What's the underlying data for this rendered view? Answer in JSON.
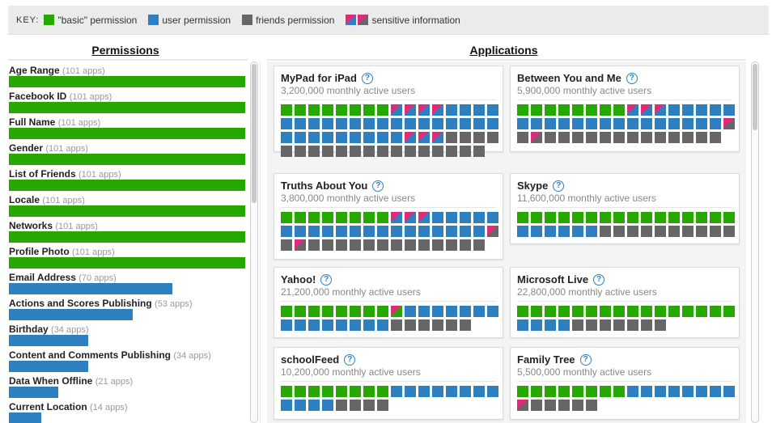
{
  "colors": {
    "basic": "#27a800",
    "user": "#2e7fc0",
    "friends": "#666666",
    "sensitive": "#e02b7a"
  },
  "key": {
    "label": "KEY:",
    "items": [
      {
        "label": "\"basic\" permission"
      },
      {
        "label": "user permission"
      },
      {
        "label": "friends permission"
      },
      {
        "label": "sensitive information"
      }
    ]
  },
  "headings": {
    "permissions": "Permissions",
    "applications": "Applications"
  },
  "permissions": [
    {
      "name": "Age Range",
      "count": "(101 apps)",
      "apps": 101,
      "type": "basic"
    },
    {
      "name": "Facebook ID",
      "count": "(101 apps)",
      "apps": 101,
      "type": "basic"
    },
    {
      "name": "Full Name",
      "count": "(101 apps)",
      "apps": 101,
      "type": "basic"
    },
    {
      "name": "Gender",
      "count": "(101 apps)",
      "apps": 101,
      "type": "basic"
    },
    {
      "name": "List of Friends",
      "count": "(101 apps)",
      "apps": 101,
      "type": "basic"
    },
    {
      "name": "Locale",
      "count": "(101 apps)",
      "apps": 101,
      "type": "basic"
    },
    {
      "name": "Networks",
      "count": "(101 apps)",
      "apps": 101,
      "type": "basic"
    },
    {
      "name": "Profile Photo",
      "count": "(101 apps)",
      "apps": 101,
      "type": "basic"
    },
    {
      "name": "Email Address",
      "count": "(70 apps)",
      "apps": 70,
      "type": "user"
    },
    {
      "name": "Actions and Scores Publishing",
      "count": "(53 apps)",
      "apps": 53,
      "type": "user"
    },
    {
      "name": "Birthday",
      "count": "(34 apps)",
      "apps": 34,
      "type": "user"
    },
    {
      "name": "Content and Comments Publishing",
      "count": "(34 apps)",
      "apps": 34,
      "type": "user"
    },
    {
      "name": "Data When Offline",
      "count": "(21 apps)",
      "apps": 21,
      "type": "user"
    },
    {
      "name": "Current Location",
      "count": "(14 apps)",
      "apps": 14,
      "type": "user"
    }
  ],
  "apps": [
    {
      "name": "MyPad for iPad",
      "users": "3,200,000 monthly active users",
      "cells": "gggggggg sb sb sb sb bbbbb bbbbbbbbbbbbbbbb bbbbbbbb sb sb sb y yyyyy yyyyyyyyyyyyy"
    },
    {
      "name": "Between You and Me",
      "users": "5,900,000 monthly active users",
      "cells": "gggggggg sb sb sb bbbbbb bbbbbbbbbbbbbb sy y sy yyyyyyyyyyyyy"
    },
    {
      "name": "Truths About You",
      "users": "3,800,000 monthly active users",
      "cells": "gggggggg sb sb sb bbbbbb bbbbbbbbbbbbbb sy y sy yyyyyyyyyyyyy"
    },
    {
      "name": "Skype",
      "users": "11,600,000 monthly active users",
      "cells": "gggggggggggggggg bbbbbbyyyyyyyyyy"
    },
    {
      "name": "Yahoo!",
      "users": "21,200,000 monthly active users",
      "cells": "gggggggg sg bbbbbbb bbbbbbbb yyyyyy"
    },
    {
      "name": "Microsoft Live",
      "users": "22,800,000 monthly active users",
      "cells": "gggggggggggggggg bbbbyyyyyyy"
    },
    {
      "name": "schoolFeed",
      "users": "10,200,000 monthly active users",
      "cells": "ggggggggbbbbbbbb bbbbyyyy"
    },
    {
      "name": "Family Tree",
      "users": "5,500,000 monthly active users",
      "cells": "ggggggggbbbbbbbb sy yyyyy"
    }
  ]
}
